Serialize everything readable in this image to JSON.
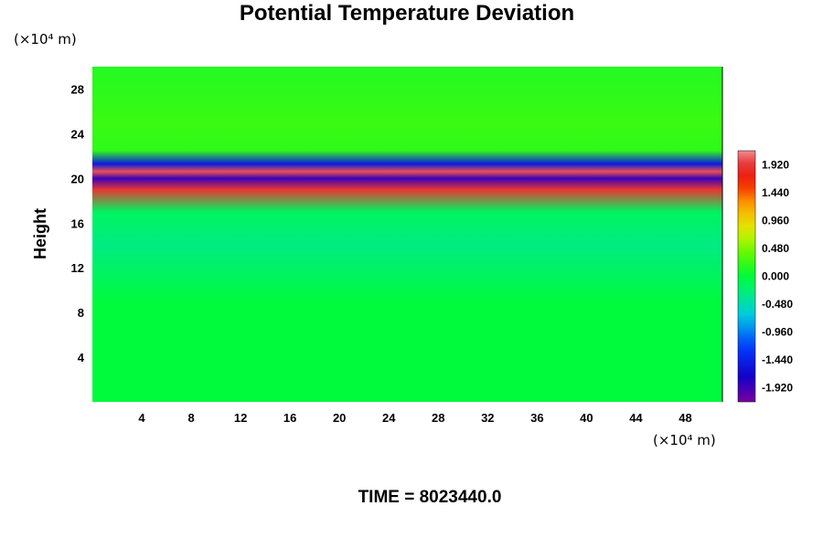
{
  "chart_data": {
    "type": "heatmap",
    "title": "Potential Temperature Deviation",
    "ylabel": "Height",
    "x_unit_label": "(×10⁴ m)",
    "y_unit_label": "(×10⁴ m)",
    "xlim": [
      0,
      51
    ],
    "ylim": [
      0,
      30
    ],
    "x_ticks": [
      "4",
      "8",
      "12",
      "16",
      "20",
      "24",
      "28",
      "32",
      "36",
      "40",
      "44",
      "48"
    ],
    "y_ticks": [
      "4",
      "8",
      "12",
      "16",
      "20",
      "24",
      "28"
    ],
    "colorbar": {
      "min": -2.16,
      "max": 2.16,
      "tick_labels": [
        "1.920",
        "1.440",
        "0.960",
        "0.480",
        "0.000",
        "-0.480",
        "-0.960",
        "-1.440",
        "-1.920"
      ],
      "tick_values": [
        1.92,
        1.44,
        0.96,
        0.48,
        0.0,
        -0.48,
        -0.96,
        -1.44,
        -1.92
      ]
    },
    "field_bands": [
      {
        "height": 0,
        "value": 0.0
      },
      {
        "height": 9,
        "value": 0.0
      },
      {
        "height": 10.5,
        "value": -0.1
      },
      {
        "height": 14,
        "value": -0.3
      },
      {
        "height": 17,
        "value": -0.15
      },
      {
        "height": 19,
        "value": 1.9
      },
      {
        "height": 20,
        "value": -1.9
      },
      {
        "height": 20.6,
        "value": 2.0
      },
      {
        "height": 21.3,
        "value": -1.5
      },
      {
        "height": 22.5,
        "value": 0.2
      },
      {
        "height": 25,
        "value": 0.25
      },
      {
        "height": 30,
        "value": 0.15
      }
    ],
    "footer": "TIME = 8023440.0"
  }
}
